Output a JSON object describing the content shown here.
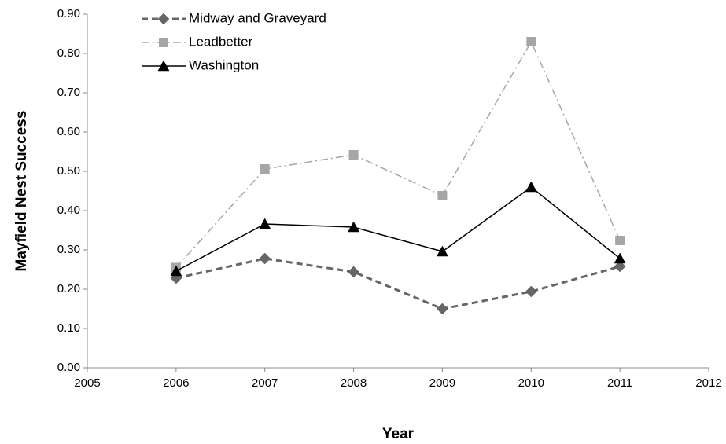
{
  "chart_data": {
    "type": "line",
    "x_label": "Year",
    "y_label": "Mayfield Nest Success",
    "x": [
      2006,
      2007,
      2008,
      2009,
      2010,
      2011
    ],
    "series": [
      {
        "name": "Midway and Graveyard",
        "color": "#666666",
        "dash": "8,5",
        "width": 3,
        "marker": "diamond",
        "values": [
          0.228,
          0.278,
          0.244,
          0.15,
          0.194,
          0.258
        ]
      },
      {
        "name": "Leadbetter",
        "color": "#a6a6a6",
        "dash": "10,4,2,4",
        "width": 1.5,
        "marker": "square",
        "values": [
          0.255,
          0.506,
          0.542,
          0.438,
          0.83,
          0.324
        ]
      },
      {
        "name": "Washington",
        "color": "#000000",
        "dash": "none",
        "width": 1.5,
        "marker": "triangle",
        "values": [
          0.246,
          0.366,
          0.358,
          0.296,
          0.46,
          0.278
        ]
      }
    ],
    "xlim": [
      2005,
      2012
    ],
    "xticks": [
      2005,
      2006,
      2007,
      2008,
      2009,
      2010,
      2011,
      2012
    ],
    "ylim": [
      0,
      0.9
    ],
    "yticks": [
      {
        "value": 0,
        "label": "0.00"
      },
      {
        "value": 0.1,
        "label": "0.10"
      },
      {
        "value": 0.2,
        "label": "0.20"
      },
      {
        "value": 0.3,
        "label": "0.30"
      },
      {
        "value": 0.4,
        "label": "0.40"
      },
      {
        "value": 0.5,
        "label": "0.50"
      },
      {
        "value": 0.6,
        "label": "0.60"
      },
      {
        "value": 0.7,
        "label": "0.70"
      },
      {
        "value": 0.8,
        "label": "0.80"
      },
      {
        "value": 0.9,
        "label": "0.90"
      }
    ],
    "grid": false,
    "legend": "top-left"
  }
}
